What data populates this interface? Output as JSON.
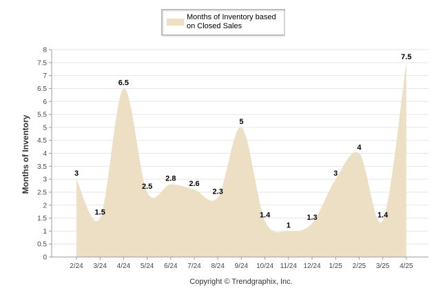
{
  "chart_data": {
    "type": "area",
    "categories": [
      "2/24",
      "3/24",
      "4/24",
      "5/24",
      "6/24",
      "7/24",
      "8/24",
      "9/24",
      "10/24",
      "11/24",
      "12/24",
      "1/25",
      "2/25",
      "3/25",
      "4/25"
    ],
    "series": [
      {
        "name": "Months of Inventory based on Closed Sales",
        "values": [
          3,
          1.5,
          6.5,
          2.5,
          2.8,
          2.6,
          2.3,
          5,
          1.4,
          1,
          1.3,
          3,
          4,
          1.4,
          7.5
        ],
        "labels": [
          "3",
          "1.5",
          "6.5",
          "2.5",
          "2.8",
          "2.6",
          "2.3",
          "5",
          "1.4",
          "1",
          "1.3",
          "3",
          "4",
          "1.4",
          "7.5"
        ],
        "color": "#ecdfc4"
      }
    ],
    "legend": {
      "lines": [
        "Months of Inventory based",
        "on Closed Sales"
      ],
      "position": "top-center"
    },
    "ylabel": "Months of Inventory",
    "xlabel": "",
    "ylim": [
      0,
      8
    ],
    "yticks": [
      "0",
      "0.5",
      "1",
      "1.5",
      "2",
      "2.5",
      "3",
      "3.5",
      "4",
      "4.5",
      "5",
      "5.5",
      "6",
      "6.5",
      "7",
      "7.5",
      "8"
    ],
    "grid": true,
    "footer": "Copyright © Trendgraphix, Inc.",
    "colors": {
      "area": "#ecdfc4",
      "grid": "#e6e6e6",
      "axis": "#999999"
    }
  }
}
